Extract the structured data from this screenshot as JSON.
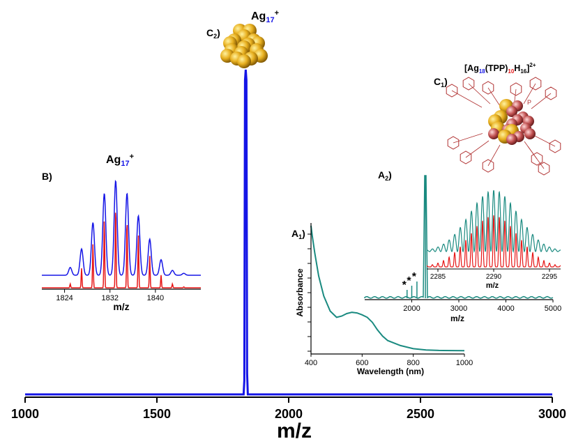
{
  "chart_data": [
    {
      "id": "main",
      "type": "line",
      "xlabel": "m/z",
      "ylabel": "",
      "xlim": [
        1000,
        3000
      ],
      "xticks": [
        1000,
        1500,
        2000,
        2500,
        3000
      ],
      "grid": false,
      "peak": {
        "x": 1837,
        "relative_height": 1.0
      },
      "color": "#1515e6"
    },
    {
      "id": "insetB",
      "type": "line",
      "panel_label": "B)",
      "title": {
        "base": "Ag",
        "sub": "17",
        "sup": "+"
      },
      "xlabel": "m/z",
      "xlim": [
        1820,
        1848
      ],
      "xticks": [
        1824,
        1832,
        1840
      ],
      "series": [
        {
          "name": "experimental",
          "color": "#1515e6",
          "x": [
            1825,
            1827,
            1829,
            1831,
            1833,
            1835,
            1837,
            1839,
            1841,
            1843,
            1845
          ],
          "values": [
            0.08,
            0.27,
            0.54,
            0.84,
            0.97,
            0.84,
            0.61,
            0.37,
            0.16,
            0.05,
            0.02
          ]
        },
        {
          "name": "simulated",
          "color": "#e61515",
          "x": [
            1825,
            1827,
            1829,
            1831,
            1833,
            1835,
            1837,
            1839,
            1841,
            1843,
            1845
          ],
          "values": [
            0.04,
            0.2,
            0.45,
            0.71,
            0.85,
            0.71,
            0.56,
            0.33,
            0.13,
            0.04,
            0.01
          ]
        }
      ]
    },
    {
      "id": "insetA2",
      "type": "line",
      "panel_label": "A",
      "panel_sub": "2",
      "xlabel": "m/z",
      "xlim": [
        1000,
        5000
      ],
      "xticks": [
        2000,
        3000,
        4000,
        5000
      ],
      "annotations": [
        "*",
        "*",
        "*"
      ],
      "annotation_x": [
        1900,
        2000,
        2110
      ],
      "peak": {
        "x": 2290,
        "relative_height": 1.0
      },
      "color": "#1a8a80",
      "zoom": {
        "xlim": [
          2284,
          2296
        ],
        "xticks": [
          2285,
          2290,
          2295
        ],
        "xlabel": "m/z",
        "series": [
          {
            "name": "experimental",
            "color": "#1a8a80"
          },
          {
            "name": "simulated",
            "color": "#e61515"
          }
        ]
      }
    },
    {
      "id": "insetA1",
      "type": "line",
      "panel_label": "A",
      "panel_sub": "1",
      "xlabel": "Wavelength (nm)",
      "ylabel": "Absorbance",
      "xlim": [
        400,
        1000
      ],
      "xticks": [
        400,
        600,
        800,
        1000
      ],
      "color": "#1a8a80",
      "x": [
        400,
        405,
        415,
        430,
        450,
        475,
        500,
        520,
        540,
        560,
        580,
        600,
        620,
        640,
        660,
        680,
        700,
        750,
        800,
        850,
        900,
        1000
      ],
      "values": [
        1.0,
        0.92,
        0.78,
        0.6,
        0.44,
        0.32,
        0.27,
        0.28,
        0.3,
        0.31,
        0.305,
        0.29,
        0.27,
        0.23,
        0.17,
        0.12,
        0.085,
        0.045,
        0.02,
        0.01,
        0.006,
        0.004
      ]
    }
  ],
  "panels": {
    "C2": {
      "label": "C",
      "sub": "2",
      "title": {
        "base": "Ag",
        "sub": "17",
        "sup": "+"
      }
    },
    "C1": {
      "label": "C",
      "sub": "1",
      "formula": {
        "open": "[Ag",
        "n1": "18",
        "mid1": "(TPP)",
        "n2": "10",
        "mid2": "H",
        "n3": "16",
        "close": "]",
        "charge": "2+"
      },
      "ligand_label": "P"
    }
  },
  "colors": {
    "blue": "#1515e6",
    "teal": "#1a8a80",
    "red": "#e61515",
    "gold": "#e0b020",
    "cluster_red": "#c05050"
  }
}
